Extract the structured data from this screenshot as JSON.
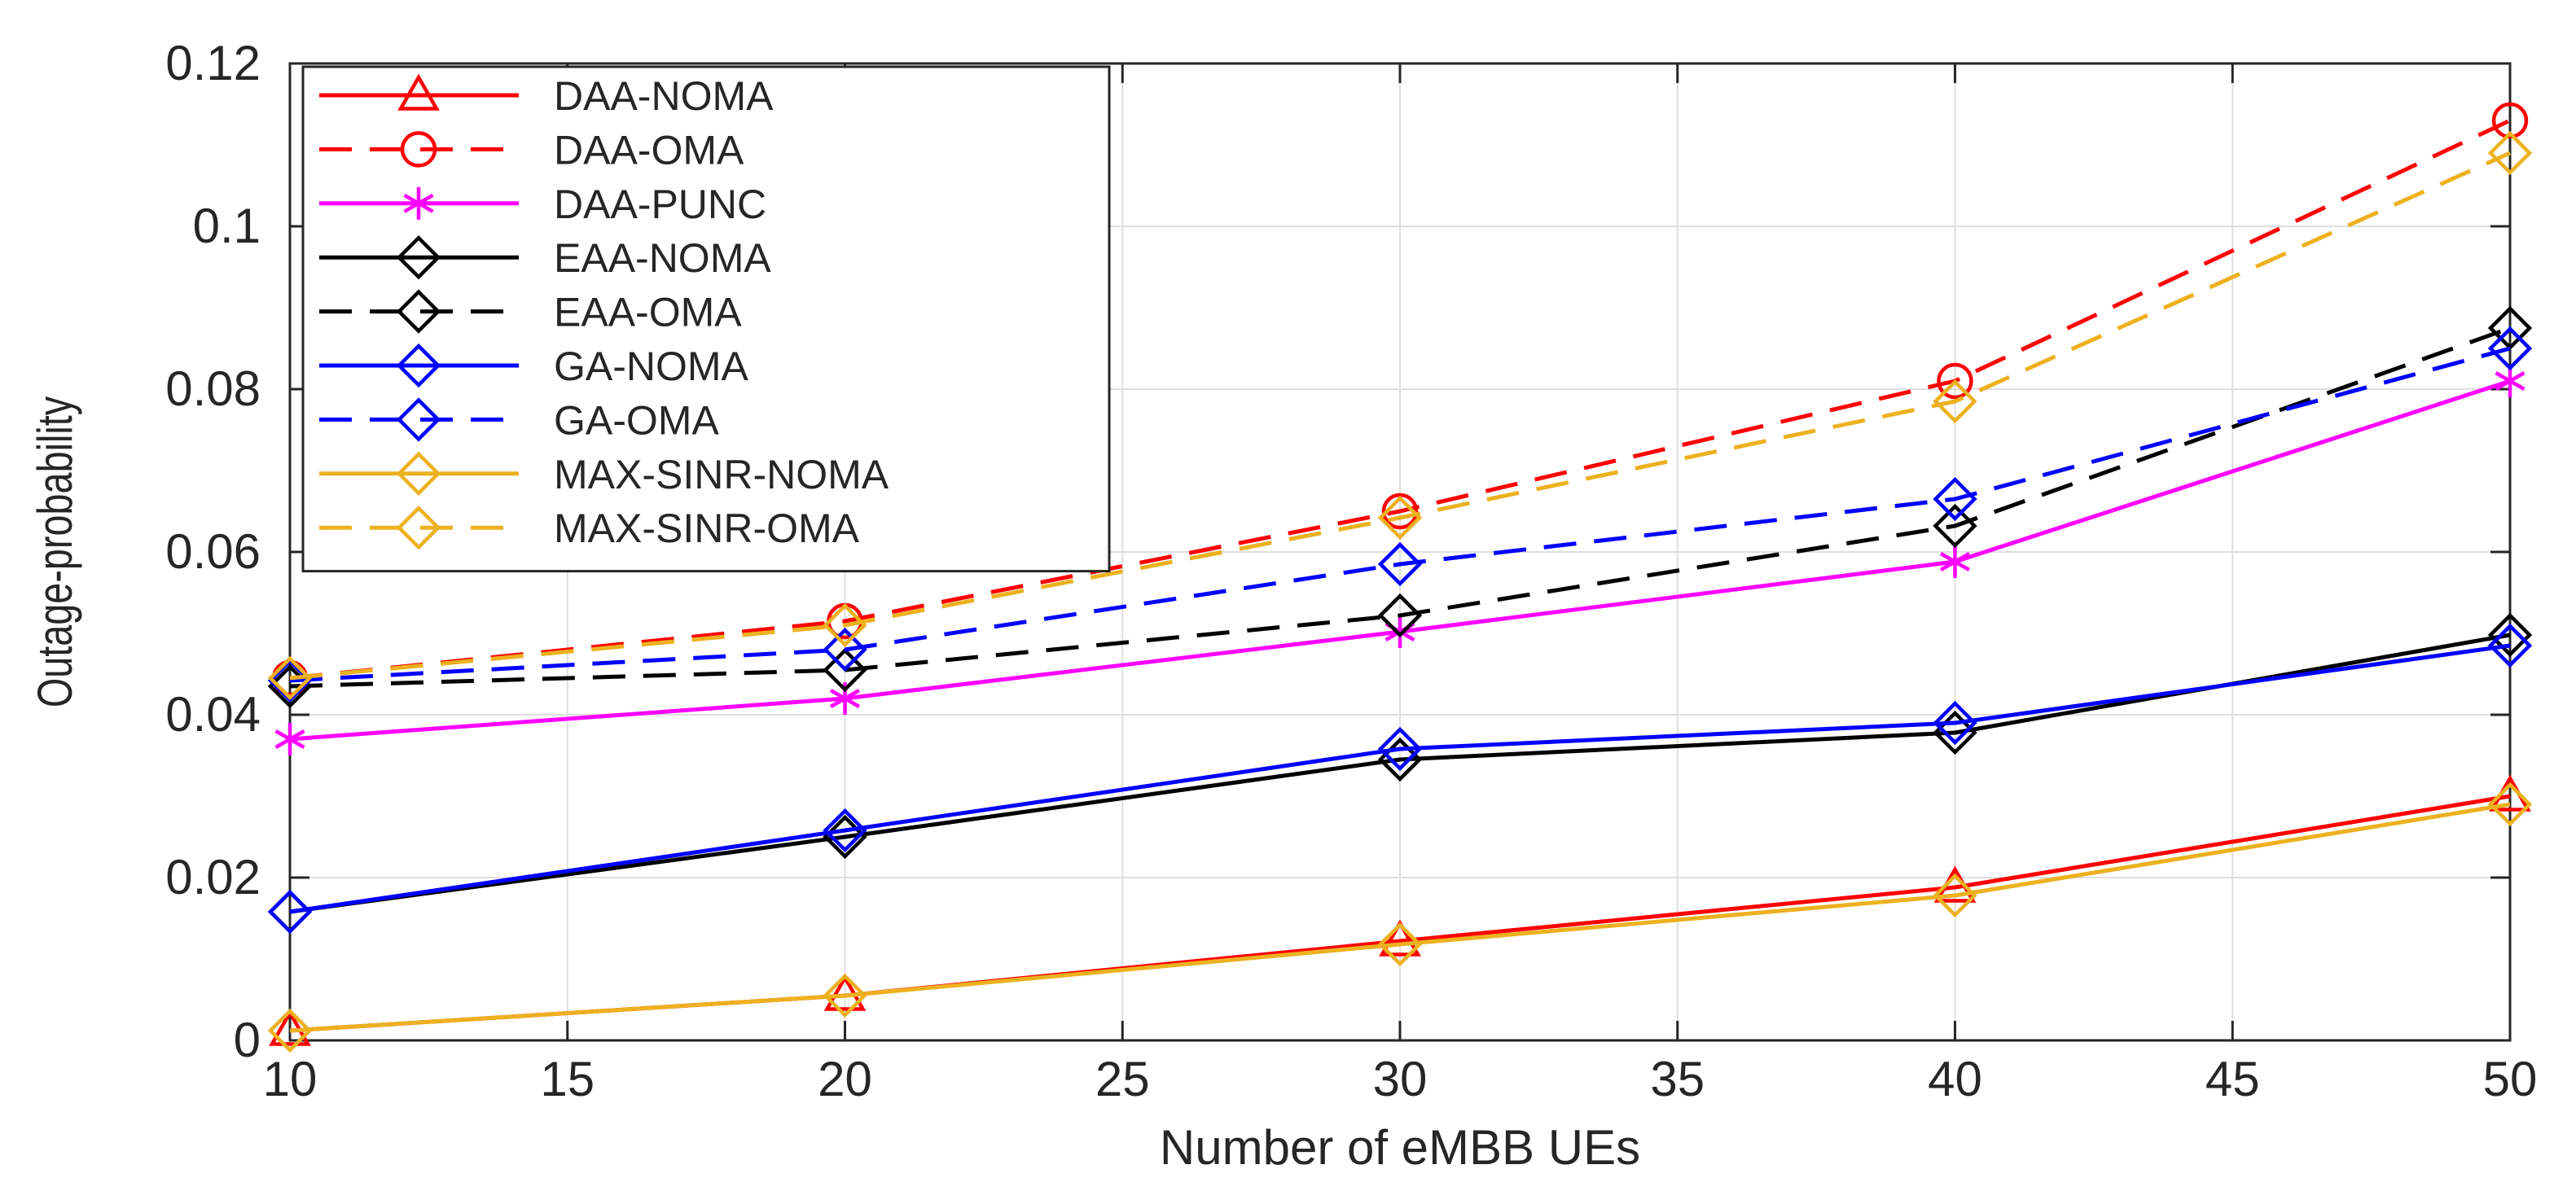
{
  "chart_data": {
    "type": "line",
    "title": "",
    "xlabel": "Number of eMBB UEs",
    "ylabel": "Outage-probability",
    "x": [
      10,
      20,
      30,
      40,
      50
    ],
    "xlim": [
      10,
      50
    ],
    "ylim": [
      0,
      0.12
    ],
    "xticks": [
      10,
      15,
      20,
      25,
      30,
      35,
      40,
      45,
      50
    ],
    "xtick_labels": [
      "10",
      "15",
      "20",
      "25",
      "30",
      "35",
      "40",
      "45",
      "50"
    ],
    "yticks": [
      0,
      0.02,
      0.04,
      0.06,
      0.08,
      0.1,
      0.12
    ],
    "ytick_labels": [
      "0",
      "0.02",
      "0.04",
      "0.06",
      "0.08",
      "0.1",
      "0.12"
    ],
    "grid": true,
    "legend_position": "top-left",
    "series": [
      {
        "name": "DAA-NOMA",
        "values": [
          0.0012,
          0.0055,
          0.0122,
          0.0188,
          0.03
        ],
        "color": "#ff0000",
        "dash": "solid",
        "marker": "triangle"
      },
      {
        "name": "DAA-OMA",
        "values": [
          0.0445,
          0.0515,
          0.065,
          0.081,
          0.113
        ],
        "color": "#ff0000",
        "dash": "dashed",
        "marker": "circle"
      },
      {
        "name": "DAA-PUNC",
        "values": [
          0.037,
          0.042,
          0.0502,
          0.0588,
          0.081
        ],
        "color": "#ff00ff",
        "dash": "solid",
        "marker": "asterisk"
      },
      {
        "name": "EAA-NOMA",
        "values": [
          0.0158,
          0.025,
          0.0345,
          0.0378,
          0.0498
        ],
        "color": "#000000",
        "dash": "solid",
        "marker": "diamond"
      },
      {
        "name": "EAA-OMA",
        "values": [
          0.0435,
          0.0455,
          0.0522,
          0.0632,
          0.0875
        ],
        "color": "#000000",
        "dash": "dashed",
        "marker": "diamond"
      },
      {
        "name": "GA-NOMA",
        "values": [
          0.0158,
          0.0258,
          0.0358,
          0.039,
          0.0485
        ],
        "color": "#0000ff",
        "dash": "solid",
        "marker": "diamond"
      },
      {
        "name": "GA-OMA",
        "values": [
          0.0442,
          0.048,
          0.0585,
          0.0665,
          0.085
        ],
        "color": "#0000ff",
        "dash": "dashed",
        "marker": "diamond"
      },
      {
        "name": "MAX-SINR-NOMA",
        "values": [
          0.0012,
          0.0055,
          0.0118,
          0.0178,
          0.029
        ],
        "color": "#edb120",
        "dash": "solid",
        "marker": "diamond"
      },
      {
        "name": "MAX-SINR-OMA",
        "values": [
          0.0445,
          0.051,
          0.0642,
          0.0785,
          0.109
        ],
        "color": "#edb120",
        "dash": "dashed",
        "marker": "diamond"
      }
    ]
  }
}
